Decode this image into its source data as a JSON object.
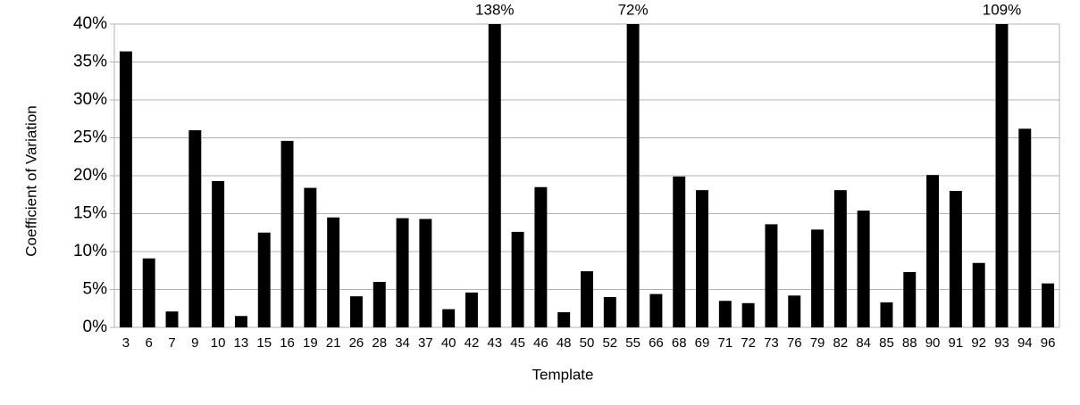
{
  "chart_data": {
    "type": "bar",
    "xlabel": "Template",
    "ylabel": "Coefficient of Variation",
    "categories": [
      "3",
      "6",
      "7",
      "9",
      "10",
      "13",
      "15",
      "16",
      "19",
      "21",
      "26",
      "28",
      "34",
      "37",
      "40",
      "42",
      "43",
      "45",
      "46",
      "48",
      "50",
      "52",
      "55",
      "66",
      "68",
      "69",
      "71",
      "72",
      "73",
      "76",
      "79",
      "82",
      "84",
      "85",
      "88",
      "90",
      "91",
      "92",
      "93",
      "94",
      "96"
    ],
    "values": [
      36.4,
      9.1,
      2.1,
      26.0,
      19.3,
      1.5,
      12.5,
      24.6,
      18.4,
      14.5,
      4.1,
      6.0,
      14.4,
      14.3,
      2.4,
      4.6,
      138,
      12.6,
      18.5,
      2.0,
      7.4,
      4.0,
      72,
      4.4,
      19.9,
      18.1,
      3.5,
      3.2,
      13.6,
      4.2,
      12.9,
      18.1,
      15.4,
      3.3,
      7.3,
      20.1,
      18.0,
      8.5,
      109,
      26.2,
      5.8
    ],
    "value_labels": [
      null,
      null,
      null,
      null,
      null,
      null,
      null,
      null,
      null,
      null,
      null,
      null,
      null,
      null,
      null,
      null,
      "138%",
      null,
      null,
      null,
      null,
      null,
      "72%",
      null,
      null,
      null,
      null,
      null,
      null,
      null,
      null,
      null,
      null,
      null,
      null,
      null,
      null,
      null,
      "109%",
      null,
      null
    ],
    "color": "#000000",
    "ylim": [
      0,
      40
    ],
    "yticks": [
      {
        "value": 0,
        "label": "0%"
      },
      {
        "value": 5,
        "label": "5%"
      },
      {
        "value": 10,
        "label": "10%"
      },
      {
        "value": 15,
        "label": "15%"
      },
      {
        "value": 20,
        "label": "20%"
      },
      {
        "value": 25,
        "label": "25%"
      },
      {
        "value": 30,
        "label": "30%"
      },
      {
        "value": 35,
        "label": "35%"
      },
      {
        "value": 40,
        "label": "40%"
      }
    ],
    "grid": true
  }
}
